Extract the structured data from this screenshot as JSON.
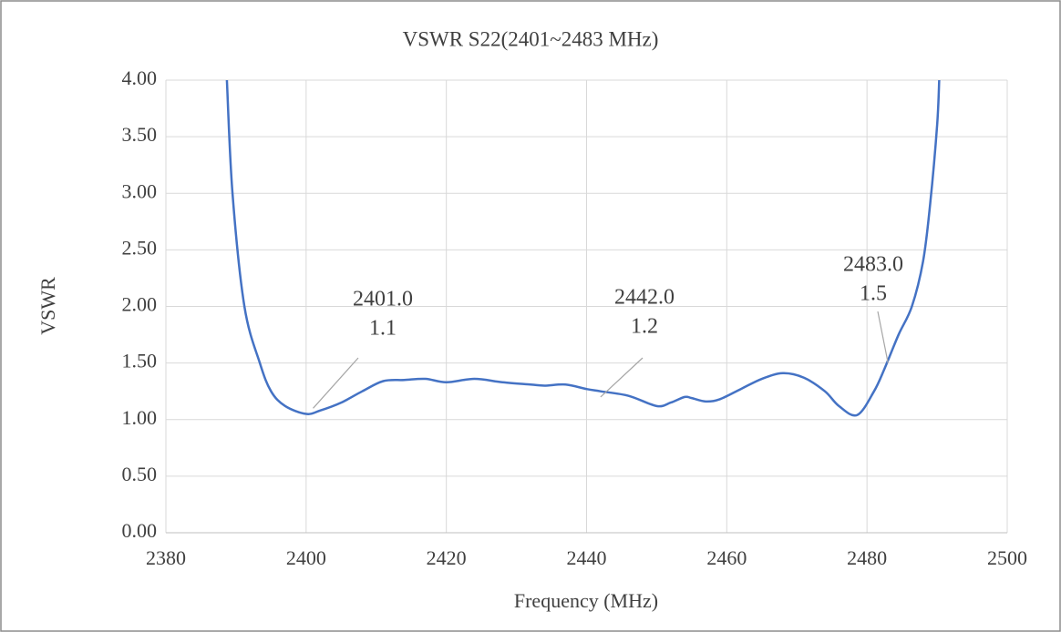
{
  "chart_data": {
    "type": "line",
    "title": "VSWR S22(2401~2483 MHz)",
    "x_label": "Frequency (MHz)",
    "y_label": "VSWR",
    "xlim": [
      2380,
      2500
    ],
    "xticks": [
      2380,
      2400,
      2420,
      2440,
      2460,
      2480,
      2500
    ],
    "ylim": [
      0,
      4
    ],
    "yticks": [
      {
        "value": 0,
        "label": "0.00"
      },
      {
        "value": 0.5,
        "label": "0.50"
      },
      {
        "value": 1,
        "label": "1.00"
      },
      {
        "value": 1.5,
        "label": "1.50"
      },
      {
        "value": 2,
        "label": "2.00"
      },
      {
        "value": 2.5,
        "label": "2.50"
      },
      {
        "value": 3,
        "label": "3.00"
      },
      {
        "value": 3.5,
        "label": "3.50"
      },
      {
        "value": 4,
        "label": "4.00"
      }
    ],
    "grid": true,
    "series": [
      {
        "name": "VSWR",
        "color": "#4472c4",
        "x": [
          2388.7,
          2389.5,
          2391.2,
          2393.4,
          2395,
          2397,
          2400,
          2402,
          2405,
          2408,
          2411,
          2414,
          2417,
          2420,
          2424,
          2428,
          2432,
          2434,
          2437,
          2440,
          2442,
          2446,
          2450,
          2452,
          2454,
          2455,
          2457,
          2459,
          2462,
          2465,
          2468,
          2471,
          2474,
          2476,
          2478.6,
          2481,
          2482.5,
          2484.5,
          2486.4,
          2488,
          2489,
          2490,
          2490.3
        ],
        "values": [
          4.0,
          3.0,
          2.0,
          1.5,
          1.25,
          1.12,
          1.05,
          1.08,
          1.15,
          1.25,
          1.34,
          1.35,
          1.36,
          1.33,
          1.36,
          1.33,
          1.31,
          1.3,
          1.31,
          1.27,
          1.25,
          1.21,
          1.12,
          1.15,
          1.2,
          1.19,
          1.16,
          1.18,
          1.27,
          1.36,
          1.41,
          1.37,
          1.25,
          1.12,
          1.04,
          1.25,
          1.45,
          1.75,
          2.0,
          2.4,
          2.9,
          3.6,
          4.0
        ]
      }
    ],
    "annotations": [
      {
        "label_x": "2401.0",
        "label_y": "1.1",
        "x": 2401,
        "y": 1.1
      },
      {
        "label_x": "2442.0",
        "label_y": "1.2",
        "x": 2442,
        "y": 1.2
      },
      {
        "label_x": "2483.0",
        "label_y": "1.5",
        "x": 2483,
        "y": 1.5
      }
    ]
  }
}
